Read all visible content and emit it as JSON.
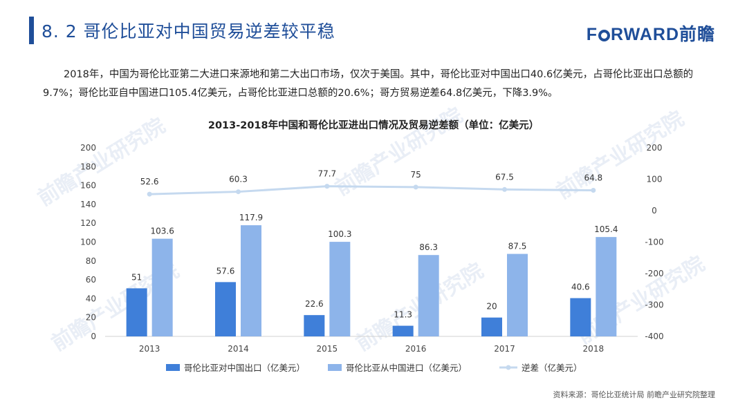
{
  "header": {
    "title": "8. 2  哥伦比亚对中国贸易逆差较平稳",
    "brand_text_1": "F",
    "brand_text_2": "RWARD前瞻"
  },
  "intro": {
    "text": "2018年，中国为哥伦比亚第二大进口来源地和第二大出口市场，仅次于美国。其中，哥伦比亚对中国出口40.6亿美元，占哥伦比亚出口总额的9.7%；哥伦比亚自中国进口105.4亿美元，占哥伦比亚进口总额的20.6%；哥方贸易逆差64.8亿美元，下降3.9%。"
  },
  "watermark": {
    "text": "前瞻产业研究院"
  },
  "colors": {
    "brand": "#1f4e99",
    "export_bar": "#3f7fd9",
    "import_bar": "#8db4ea",
    "deficit_line": "#c5d9ef"
  },
  "chart_data": {
    "type": "bar+line",
    "title": "2013-2018年中国和哥伦比亚进出口情况及贸易逆差额（单位：亿美元）",
    "categories": [
      "2013",
      "2014",
      "2015",
      "2016",
      "2017",
      "2018"
    ],
    "series": [
      {
        "name": "哥伦比亚对中国出口（亿美元）",
        "type": "bar",
        "axis": "left",
        "values": [
          51,
          57.6,
          22.6,
          11.3,
          20,
          40.6
        ],
        "labels": [
          "51",
          "57.6",
          "22.6",
          "11.3",
          "20",
          "40.6"
        ]
      },
      {
        "name": "哥伦比亚从中国进口（亿美元）",
        "type": "bar",
        "axis": "left",
        "values": [
          103.6,
          117.9,
          100.3,
          86.3,
          87.5,
          105.4
        ],
        "labels": [
          "103.6",
          "117.9",
          "100.3",
          "86.3",
          "87.5",
          "105.4"
        ]
      },
      {
        "name": "逆差（亿美元）",
        "type": "line",
        "axis": "right",
        "values": [
          52.6,
          60.3,
          77.7,
          75,
          67.5,
          64.8
        ],
        "labels": [
          "52.6",
          "60.3",
          "77.7",
          "75",
          "67.5",
          "64.8"
        ]
      }
    ],
    "left_axis": {
      "range": [
        0,
        200
      ],
      "ticks": [
        "0",
        "20",
        "40",
        "60",
        "80",
        "100",
        "120",
        "140",
        "160",
        "180",
        "200"
      ]
    },
    "right_axis": {
      "range": [
        -400,
        200
      ],
      "ticks": [
        "-400",
        "-300",
        "-200",
        "-100",
        "0",
        "100",
        "200"
      ]
    },
    "legend_position": "bottom"
  },
  "source": {
    "text": "资料来源：哥伦比亚统计局  前瞻产业研究院整理"
  }
}
